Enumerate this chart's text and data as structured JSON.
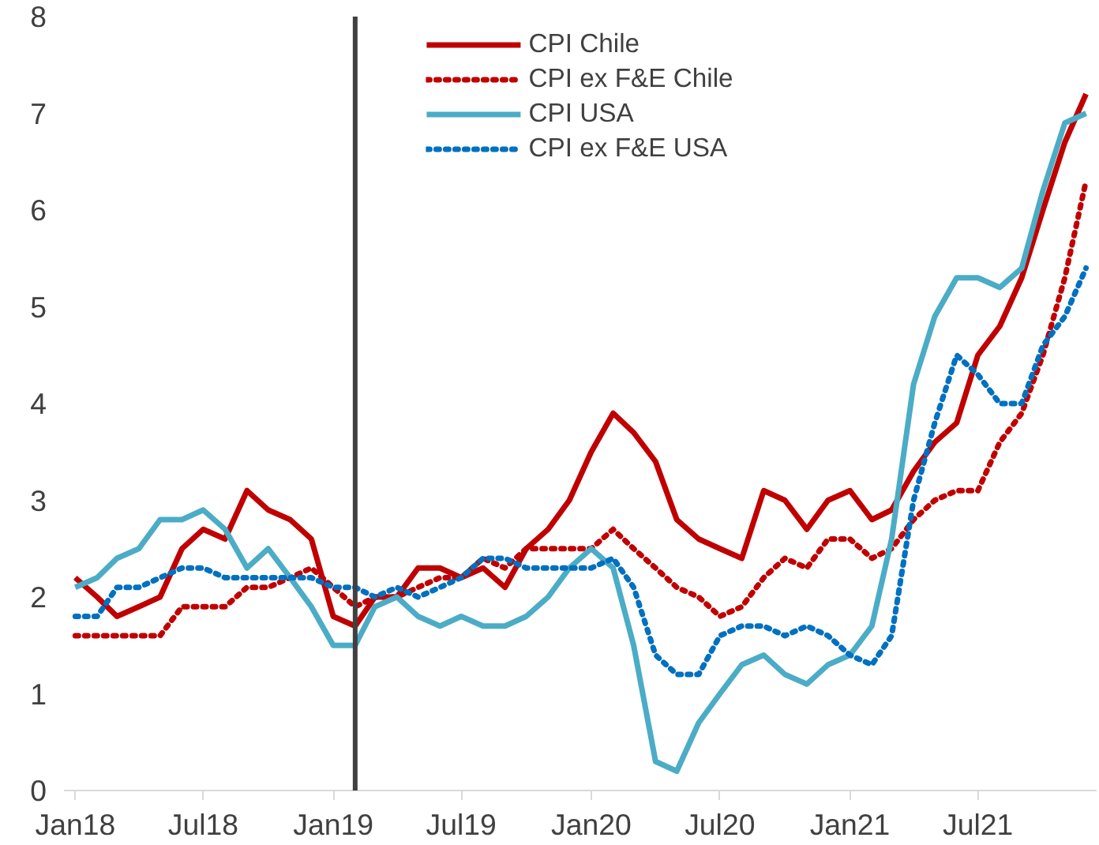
{
  "chart_data": {
    "type": "line",
    "x": [
      "2018-01",
      "2018-02",
      "2018-03",
      "2018-04",
      "2018-05",
      "2018-06",
      "2018-07",
      "2018-08",
      "2018-09",
      "2018-10",
      "2018-11",
      "2018-12",
      "2019-01",
      "2019-02",
      "2019-03",
      "2019-04",
      "2019-05",
      "2019-06",
      "2019-07",
      "2019-08",
      "2019-09",
      "2019-10",
      "2019-11",
      "2019-12",
      "2020-01",
      "2020-02",
      "2020-03",
      "2020-04",
      "2020-05",
      "2020-06",
      "2020-07",
      "2020-08",
      "2020-09",
      "2020-10",
      "2020-11",
      "2020-12",
      "2021-01",
      "2021-02",
      "2021-03",
      "2021-04",
      "2021-05",
      "2021-06",
      "2021-07",
      "2021-08",
      "2021-09",
      "2021-10",
      "2021-11",
      "2021-12"
    ],
    "xlim": [
      "2017-12-16",
      "2021-12-16"
    ],
    "xticks": [
      {
        "value": "2018-01",
        "label": "Jan18"
      },
      {
        "value": "2018-07",
        "label": "Jul18"
      },
      {
        "value": "2019-01",
        "label": "Jan19"
      },
      {
        "value": "2019-07",
        "label": "Jul19"
      },
      {
        "value": "2020-01",
        "label": "Jan20"
      },
      {
        "value": "2020-07",
        "label": "Jul20"
      },
      {
        "value": "2021-01",
        "label": "Jan21"
      },
      {
        "value": "2021-07",
        "label": "Jul21"
      }
    ],
    "ylim": [
      0,
      8
    ],
    "yticks": [
      0,
      1,
      2,
      3,
      4,
      5,
      6,
      7,
      8
    ],
    "grid": false,
    "legend": "top",
    "marker": "none",
    "ref_lines": [
      {
        "axis": "x",
        "value": "2019-02",
        "label": null,
        "color": "#404040"
      }
    ],
    "series": [
      {
        "name": "CPI Chile",
        "color": "#c00000",
        "line_style": "solid",
        "values": [
          2.2,
          2.0,
          1.8,
          1.9,
          2.0,
          2.5,
          2.7,
          2.6,
          3.1,
          2.9,
          2.8,
          2.6,
          1.8,
          1.7,
          2.0,
          2.0,
          2.3,
          2.3,
          2.2,
          2.3,
          2.1,
          2.5,
          2.7,
          3.0,
          3.5,
          3.9,
          3.7,
          3.4,
          2.8,
          2.6,
          2.5,
          2.4,
          3.1,
          3.0,
          2.7,
          3.0,
          3.1,
          2.8,
          2.9,
          3.3,
          3.6,
          3.8,
          4.5,
          4.8,
          5.3,
          6.0,
          6.7,
          7.2
        ]
      },
      {
        "name": "CPI ex F&E Chile",
        "color": "#c00000",
        "line_style": "dotted",
        "values": [
          1.6,
          1.6,
          1.6,
          1.6,
          1.6,
          1.9,
          1.9,
          1.9,
          2.1,
          2.1,
          2.2,
          2.3,
          2.1,
          1.9,
          2.0,
          2.0,
          2.1,
          2.2,
          2.2,
          2.4,
          2.3,
          2.5,
          2.5,
          2.5,
          2.5,
          2.7,
          2.5,
          2.3,
          2.1,
          2.0,
          1.8,
          1.9,
          2.2,
          2.4,
          2.3,
          2.6,
          2.6,
          2.4,
          2.5,
          2.8,
          3.0,
          3.1,
          3.1,
          3.6,
          3.9,
          4.5,
          5.3,
          6.3
        ]
      },
      {
        "name": "CPI USA",
        "color": "#4bacc6",
        "line_style": "solid",
        "values": [
          2.1,
          2.2,
          2.4,
          2.5,
          2.8,
          2.8,
          2.9,
          2.7,
          2.3,
          2.5,
          2.2,
          1.9,
          1.5,
          1.5,
          1.9,
          2.0,
          1.8,
          1.7,
          1.8,
          1.7,
          1.7,
          1.8,
          2.0,
          2.3,
          2.5,
          2.3,
          1.5,
          0.3,
          0.2,
          0.7,
          1.0,
          1.3,
          1.4,
          1.2,
          1.1,
          1.3,
          1.4,
          1.7,
          2.6,
          4.2,
          4.9,
          5.3,
          5.3,
          5.2,
          5.4,
          6.2,
          6.9,
          7.0
        ]
      },
      {
        "name": "CPI ex F&E USA",
        "color": "#0070c0",
        "line_style": "dotted",
        "values": [
          1.8,
          1.8,
          2.1,
          2.1,
          2.2,
          2.3,
          2.3,
          2.2,
          2.2,
          2.2,
          2.2,
          2.2,
          2.1,
          2.1,
          2.0,
          2.1,
          2.0,
          2.1,
          2.2,
          2.4,
          2.4,
          2.3,
          2.3,
          2.3,
          2.3,
          2.4,
          2.1,
          1.4,
          1.2,
          1.2,
          1.6,
          1.7,
          1.7,
          1.6,
          1.7,
          1.6,
          1.4,
          1.3,
          1.6,
          3.0,
          3.8,
          4.5,
          4.3,
          4.0,
          4.0,
          4.6,
          4.9,
          5.4
        ]
      }
    ]
  }
}
